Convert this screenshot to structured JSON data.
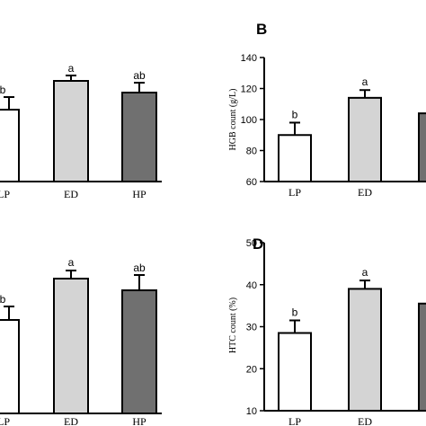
{
  "colors": {
    "LP": "#ffffff",
    "ED": "#d4d4d4",
    "HP": "#707070",
    "stroke": "#000000"
  },
  "chart_data": [
    {
      "panel": "A",
      "panel_letter_visible": false,
      "type": "bar",
      "categories": [
        "LP",
        "ED",
        "HP"
      ],
      "values": [
        null,
        null,
        null
      ],
      "errors": [
        null,
        null,
        null
      ],
      "significance": [
        "b",
        "a",
        "ab"
      ],
      "ylabel": "",
      "ylim": null,
      "yticks": [],
      "note": "left panel cropped; axis not visible"
    },
    {
      "panel": "B",
      "panel_letter_visible": true,
      "type": "bar",
      "categories": [
        "LP",
        "ED",
        "HP"
      ],
      "values": [
        90,
        114,
        104
      ],
      "errors": [
        8,
        5,
        null
      ],
      "significance": [
        "b",
        "a",
        ""
      ],
      "ylabel": "HGB count (g/L)",
      "ylim": [
        60,
        140
      ],
      "yticks": [
        60,
        80,
        100,
        120,
        140
      ]
    },
    {
      "panel": "C",
      "panel_letter_visible": false,
      "type": "bar",
      "categories": [
        "LP",
        "ED",
        "HP"
      ],
      "values": [
        null,
        null,
        null
      ],
      "errors": [
        null,
        null,
        null
      ],
      "significance": [
        "b",
        "a",
        "ab"
      ],
      "ylabel": "",
      "ylim": null,
      "yticks": [],
      "note": "left panel cropped; axis not visible"
    },
    {
      "panel": "D",
      "panel_letter_visible": true,
      "type": "bar",
      "categories": [
        "LP",
        "ED",
        "HP"
      ],
      "values": [
        28.5,
        39,
        35.5
      ],
      "errors": [
        3,
        2,
        null
      ],
      "significance": [
        "b",
        "a",
        ""
      ],
      "ylabel": "HTC count (%)",
      "ylim": [
        10,
        50
      ],
      "yticks": [
        10,
        20,
        30,
        40,
        50
      ]
    }
  ]
}
